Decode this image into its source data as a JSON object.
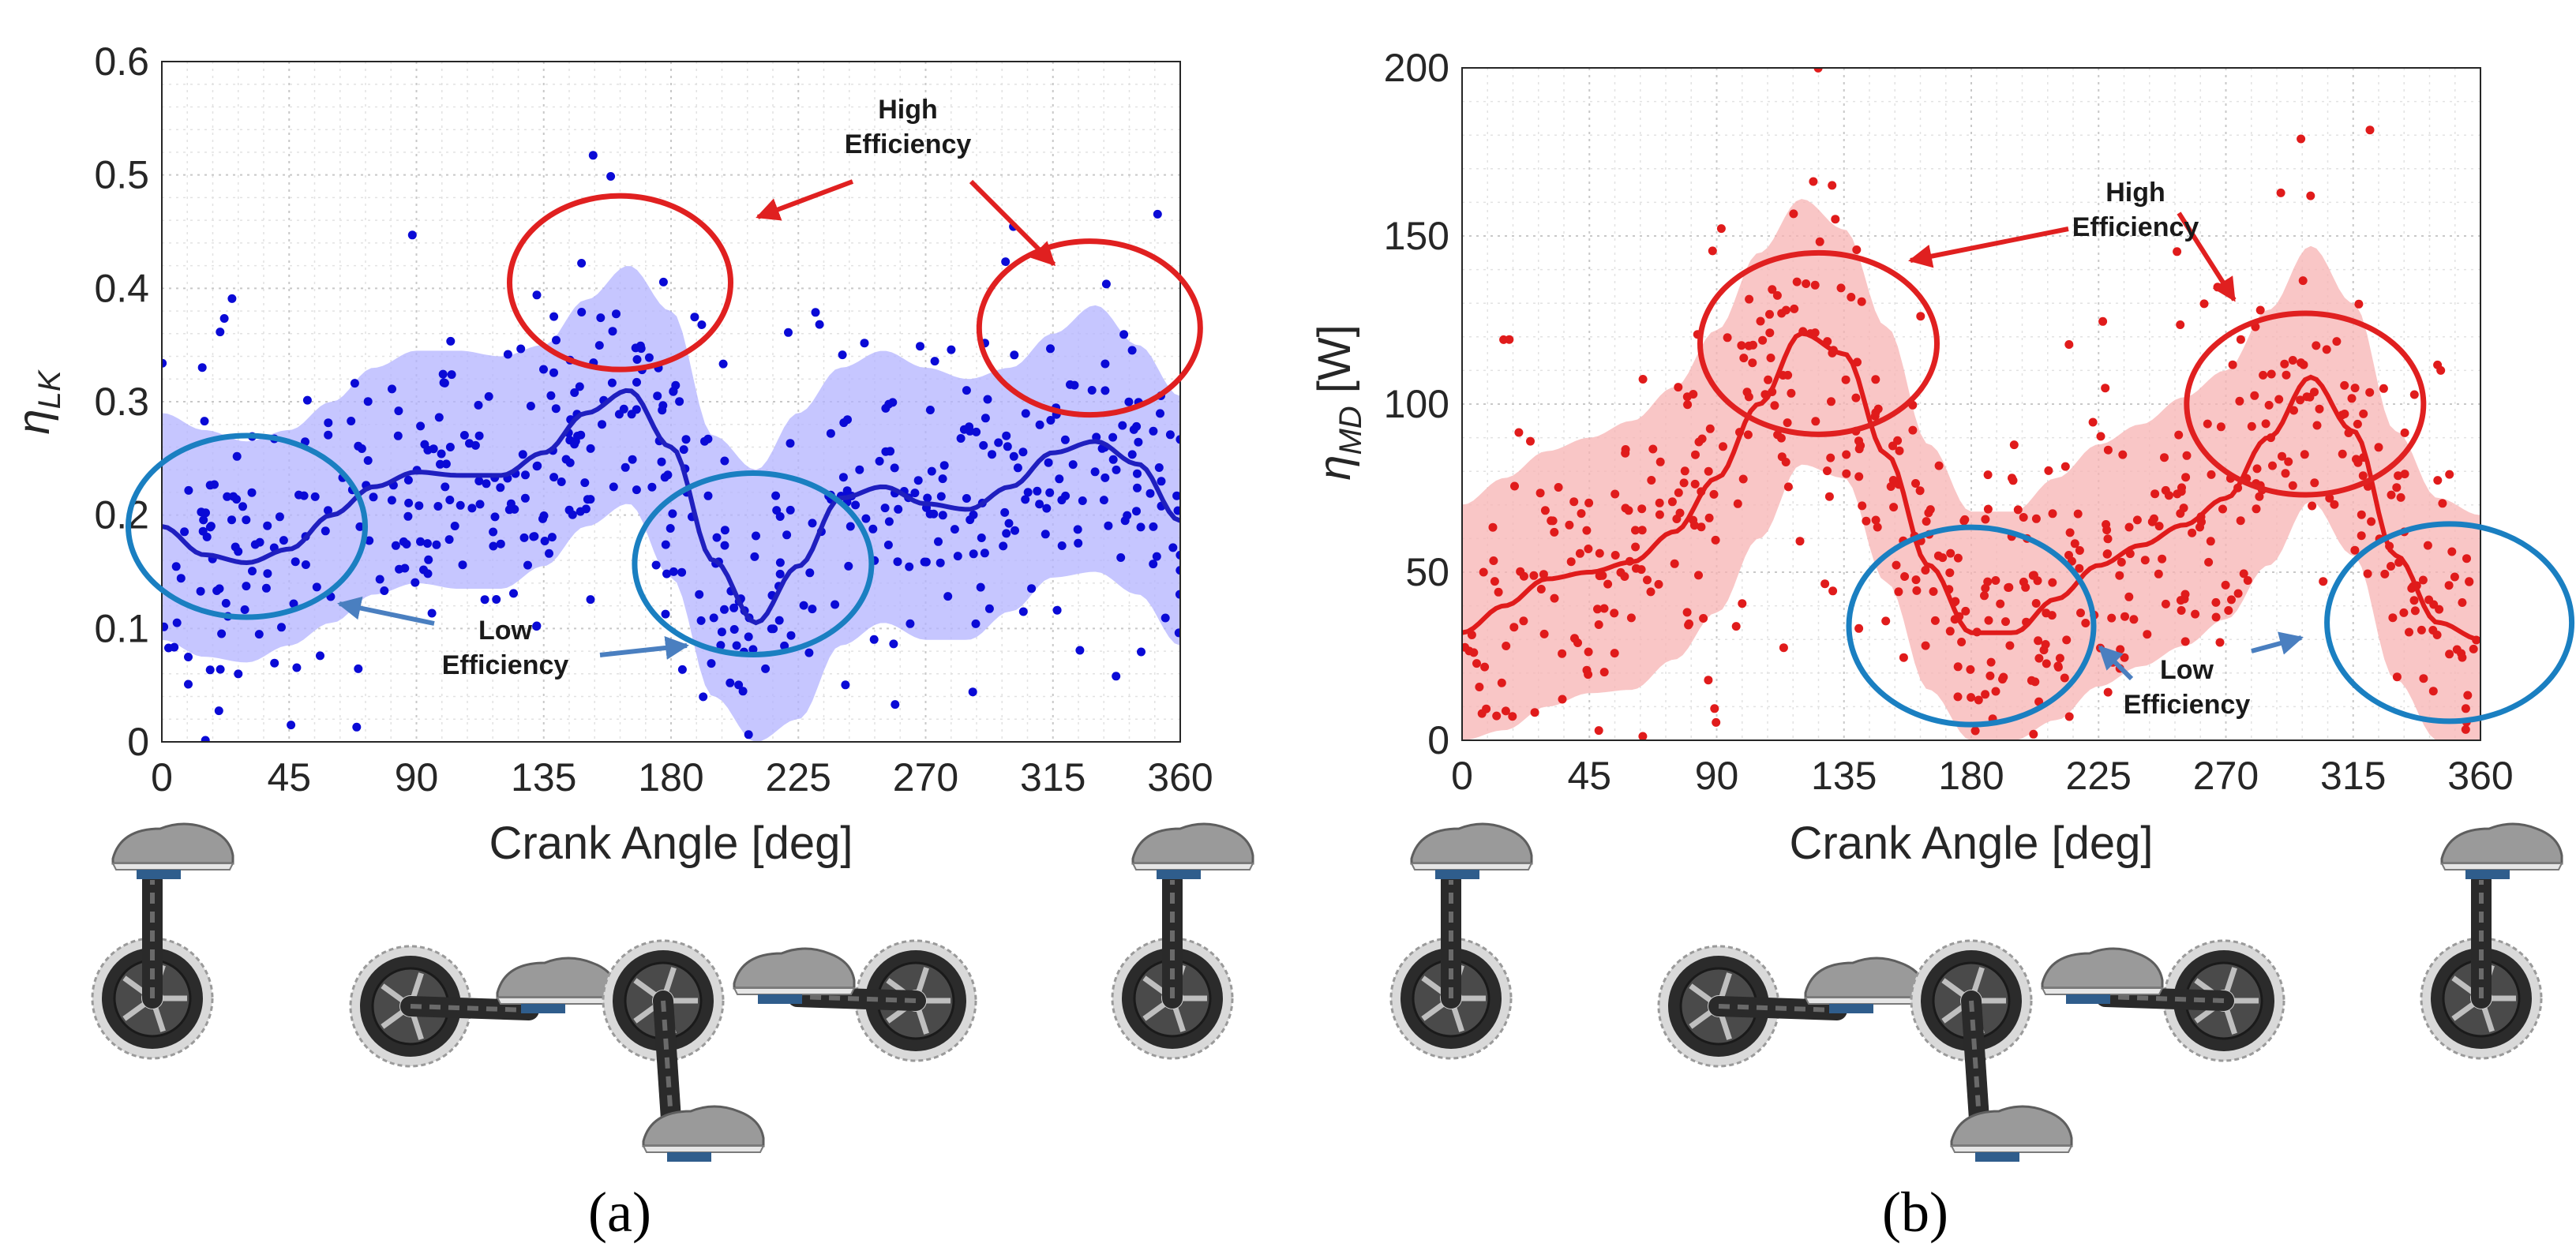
{
  "colors": {
    "a_band": "#b3b3ff",
    "a_line": "#1f1fbf",
    "a_points": "#0a0ad6",
    "b_band": "#f7b3b3",
    "b_line": "#e01b1b",
    "b_points": "#e01b1b",
    "high_circle": "#e02020",
    "low_circle": "#1a7fc1",
    "arrow_high": "#e02020",
    "arrow_low": "#4a7fc0"
  },
  "panels": {
    "a": {
      "label": "(a)"
    },
    "b": {
      "label": "(b)"
    }
  },
  "chart_data": [
    {
      "type": "line",
      "id": "a",
      "title": "",
      "xlabel": "Crank Angle [deg]",
      "ylabel_main": "η",
      "ylabel_sub": "LK",
      "xlim": [
        0,
        360
      ],
      "ylim": [
        0,
        0.6
      ],
      "xticks": [
        0,
        45,
        90,
        135,
        180,
        225,
        270,
        315,
        360
      ],
      "xtick_labels": [
        "0",
        "45",
        "90",
        "135",
        "180",
        "225",
        "270",
        "315",
        "360"
      ],
      "yticks": [
        0,
        0.1,
        0.2,
        0.3,
        0.4,
        0.5,
        0.6
      ],
      "ytick_labels": [
        "0",
        "0.1",
        "0.2",
        "0.3",
        "0.4",
        "0.5",
        "0.6"
      ],
      "grid": true,
      "series": [
        {
          "name": "mean",
          "x": [
            0,
            15,
            30,
            45,
            60,
            75,
            90,
            105,
            120,
            135,
            150,
            165,
            180,
            195,
            210,
            225,
            240,
            255,
            270,
            285,
            300,
            315,
            330,
            345,
            360
          ],
          "values": [
            0.19,
            0.165,
            0.158,
            0.17,
            0.2,
            0.225,
            0.238,
            0.235,
            0.235,
            0.255,
            0.29,
            0.31,
            0.26,
            0.16,
            0.105,
            0.155,
            0.215,
            0.225,
            0.21,
            0.205,
            0.225,
            0.255,
            0.265,
            0.245,
            0.195
          ]
        },
        {
          "name": "band_upper",
          "x": [
            0,
            15,
            30,
            45,
            60,
            75,
            90,
            105,
            120,
            135,
            150,
            165,
            180,
            195,
            210,
            225,
            240,
            255,
            270,
            285,
            300,
            315,
            330,
            345,
            360
          ],
          "values": [
            0.29,
            0.275,
            0.265,
            0.275,
            0.3,
            0.33,
            0.345,
            0.345,
            0.34,
            0.35,
            0.39,
            0.42,
            0.38,
            0.27,
            0.24,
            0.29,
            0.33,
            0.345,
            0.33,
            0.32,
            0.33,
            0.36,
            0.385,
            0.35,
            0.305
          ]
        },
        {
          "name": "band_lower",
          "x": [
            0,
            15,
            30,
            45,
            60,
            75,
            90,
            105,
            120,
            135,
            150,
            165,
            180,
            195,
            210,
            225,
            240,
            255,
            270,
            285,
            300,
            315,
            330,
            345,
            360
          ],
          "values": [
            0.09,
            0.075,
            0.07,
            0.085,
            0.105,
            0.13,
            0.14,
            0.135,
            0.135,
            0.155,
            0.19,
            0.21,
            0.145,
            0.04,
            0.0,
            0.02,
            0.085,
            0.105,
            0.09,
            0.09,
            0.115,
            0.145,
            0.15,
            0.13,
            0.085
          ]
        }
      ],
      "scatter_spread": 0.065,
      "scatter_count": 520,
      "annotations": {
        "high_text_line1": "High",
        "high_text_line2": "Efficiency",
        "low_text_line1": "Low",
        "low_text_line2": "Efficiency",
        "high_regions": [
          {
            "center_x": 162,
            "center_y": 0.405
          },
          {
            "center_x": 328,
            "center_y": 0.365
          }
        ],
        "low_regions": [
          {
            "center_x": 30,
            "center_y": 0.19
          },
          {
            "center_x": 209,
            "center_y": 0.157
          }
        ]
      }
    },
    {
      "type": "line",
      "id": "b",
      "title": "",
      "xlabel": "Crank Angle [deg]",
      "ylabel_main": "η",
      "ylabel_sub": "MD",
      "ylabel_unit": " [W]",
      "xlim": [
        0,
        360
      ],
      "ylim": [
        0,
        200
      ],
      "xticks": [
        0,
        45,
        90,
        135,
        180,
        225,
        270,
        315,
        360
      ],
      "xtick_labels": [
        "0",
        "45",
        "90",
        "135",
        "180",
        "225",
        "270",
        "315",
        "360"
      ],
      "yticks": [
        0,
        50,
        100,
        150,
        200
      ],
      "ytick_labels": [
        "0",
        "50",
        "100",
        "150",
        "200"
      ],
      "grid": true,
      "series": [
        {
          "name": "mean",
          "x": [
            0,
            15,
            30,
            45,
            60,
            75,
            90,
            105,
            120,
            135,
            150,
            165,
            180,
            195,
            210,
            225,
            240,
            255,
            270,
            285,
            300,
            315,
            330,
            345,
            360
          ],
          "values": [
            32,
            40,
            48,
            50,
            53,
            62,
            78,
            100,
            121,
            115,
            85,
            52,
            32,
            32,
            42,
            52,
            58,
            64,
            72,
            90,
            108,
            92,
            55,
            35,
            30
          ]
        },
        {
          "name": "band_upper",
          "x": [
            0,
            15,
            30,
            45,
            60,
            75,
            90,
            105,
            120,
            135,
            150,
            165,
            180,
            195,
            210,
            225,
            240,
            255,
            270,
            285,
            300,
            315,
            330,
            345,
            360
          ],
          "values": [
            70,
            78,
            86,
            90,
            95,
            105,
            122,
            145,
            161,
            152,
            123,
            88,
            68,
            68,
            78,
            88,
            94,
            102,
            110,
            128,
            147,
            130,
            92,
            72,
            67
          ]
        },
        {
          "name": "band_lower",
          "x": [
            0,
            15,
            30,
            45,
            60,
            75,
            90,
            105,
            120,
            135,
            150,
            165,
            180,
            195,
            210,
            225,
            240,
            255,
            270,
            285,
            300,
            315,
            330,
            345,
            360
          ],
          "values": [
            0,
            3,
            10,
            14,
            15,
            24,
            38,
            60,
            82,
            78,
            47,
            15,
            0,
            0,
            6,
            16,
            22,
            28,
            36,
            52,
            71,
            55,
            18,
            0,
            0
          ]
        }
      ],
      "scatter_spread": 24,
      "scatter_count": 560,
      "annotations": {
        "high_text_line1": "High",
        "high_text_line2": "Efficiency",
        "low_text_line1": "Low",
        "low_text_line2": "Efficiency",
        "high_regions": [
          {
            "center_x": 126,
            "center_y": 118
          },
          {
            "center_x": 298,
            "center_y": 100
          }
        ],
        "low_regions": [
          {
            "center_x": 180,
            "center_y": 34
          },
          {
            "center_x": 349,
            "center_y": 35
          }
        ]
      }
    }
  ]
}
